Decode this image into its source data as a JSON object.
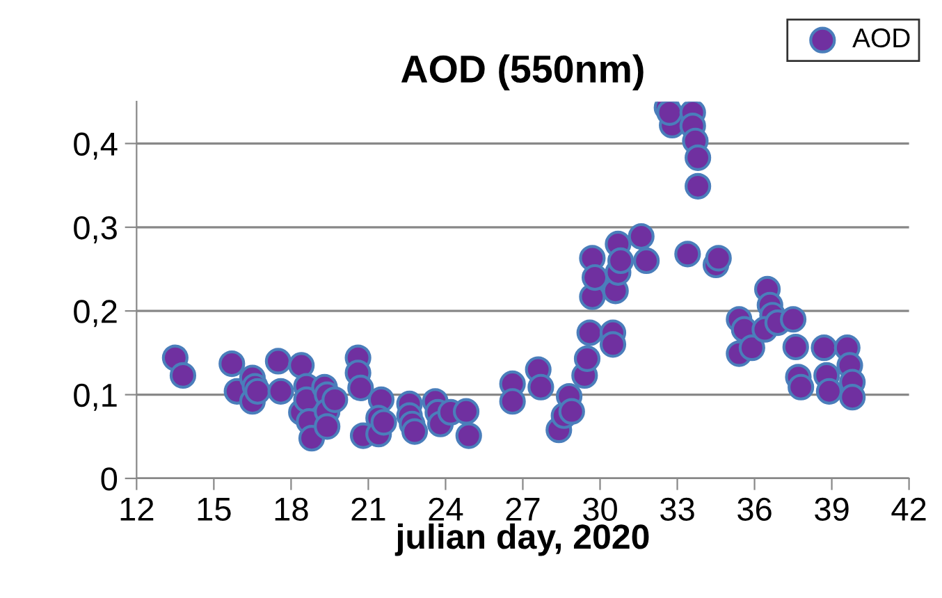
{
  "chart_data": {
    "type": "scatter",
    "title": "AOD (550nm)",
    "xlabel": "julian day, 2020",
    "xlim": [
      12,
      42
    ],
    "xticks": [
      12,
      15,
      18,
      21,
      24,
      27,
      30,
      33,
      36,
      39,
      42
    ],
    "ylim": [
      0,
      0.45
    ],
    "yticks": [
      0,
      {
        "value": 0.1,
        "label": "0,1"
      },
      {
        "value": 0.2,
        "label": "0,2"
      },
      {
        "value": 0.3,
        "label": "0,3"
      },
      {
        "value": 0.4,
        "label": "0,4"
      }
    ],
    "grid": "y",
    "legend": "top right",
    "marker": "circle",
    "series": [
      {
        "name": "AOD",
        "color": "#7030a0",
        "x": [
          13.5,
          13.8,
          15.7,
          15.9,
          16.5,
          16.5,
          16.6,
          16.7,
          17.5,
          17.6,
          18.4,
          18.4,
          18.6,
          18.6,
          18.7,
          18.8,
          19.3,
          19.4,
          19.4,
          19.4,
          19.7,
          20.6,
          20.6,
          20.7,
          20.8,
          21.5,
          21.4,
          21.4,
          21.6,
          22.6,
          22.6,
          22.7,
          22.8,
          23.6,
          23.7,
          23.8,
          24.2,
          24.8,
          24.9,
          26.6,
          26.6,
          27.6,
          27.7,
          28.4,
          28.6,
          28.8,
          28.9,
          29.4,
          29.5,
          29.6,
          29.7,
          29.7,
          29.8,
          30.5,
          30.5,
          30.6,
          30.7,
          30.7,
          30.8,
          31.6,
          31.8,
          32.6,
          32.8,
          32.7,
          33.4,
          33.6,
          33.6,
          33.7,
          33.8,
          33.8,
          34.5,
          34.6,
          35.4,
          35.4,
          35.6,
          35.9,
          36.5,
          36.6,
          36.7,
          36.4,
          36.9,
          37.5,
          37.6,
          37.7,
          37.8,
          38.7,
          38.8,
          38.9,
          39.6,
          39.7,
          39.8,
          39.8
        ],
        "values": [
          0.144,
          0.123,
          0.137,
          0.104,
          0.12,
          0.092,
          0.11,
          0.104,
          0.14,
          0.104,
          0.135,
          0.079,
          0.11,
          0.094,
          0.068,
          0.048,
          0.109,
          0.1,
          0.08,
          0.062,
          0.094,
          0.144,
          0.126,
          0.108,
          0.051,
          0.094,
          0.072,
          0.053,
          0.067,
          0.089,
          0.075,
          0.065,
          0.056,
          0.092,
          0.079,
          0.065,
          0.079,
          0.08,
          0.051,
          0.113,
          0.092,
          0.13,
          0.109,
          0.058,
          0.075,
          0.098,
          0.08,
          0.123,
          0.143,
          0.174,
          0.217,
          0.263,
          0.24,
          0.174,
          0.16,
          0.224,
          0.246,
          0.28,
          0.26,
          0.289,
          0.26,
          0.443,
          0.422,
          0.437,
          0.268,
          0.437,
          0.421,
          0.403,
          0.383,
          0.349,
          0.255,
          0.263,
          0.19,
          0.149,
          0.178,
          0.156,
          0.226,
          0.207,
          0.195,
          0.178,
          0.186,
          0.19,
          0.157,
          0.121,
          0.109,
          0.156,
          0.123,
          0.104,
          0.156,
          0.135,
          0.115,
          0.097
        ]
      }
    ]
  }
}
